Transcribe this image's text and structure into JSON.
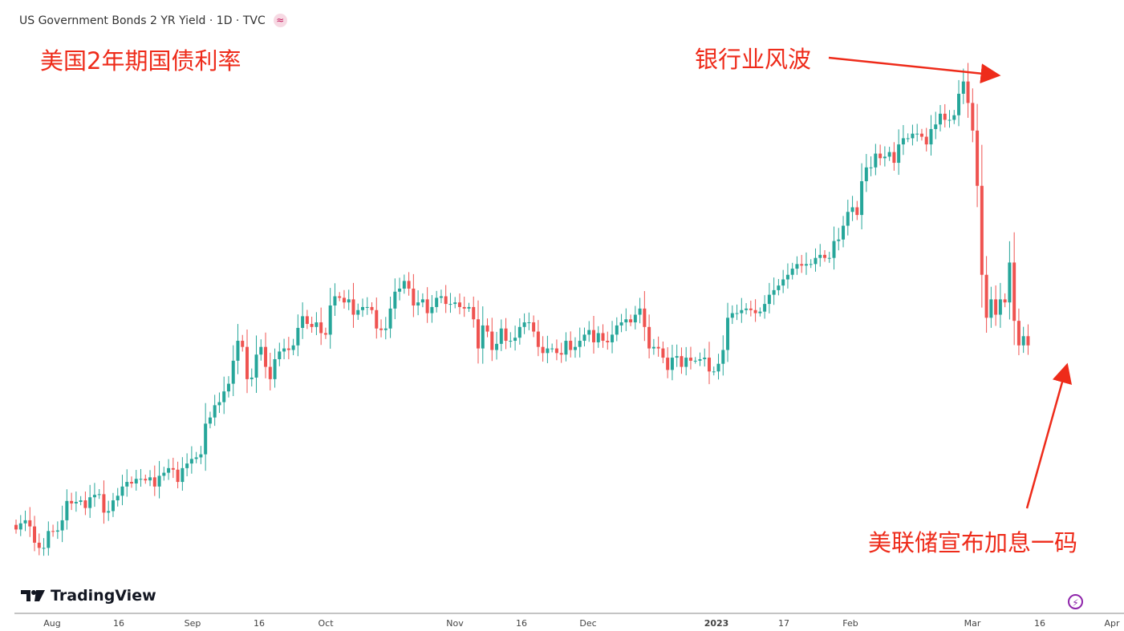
{
  "header": {
    "symbol_line": "US Government Bonds 2 YR Yield · 1D · TVC"
  },
  "annotations": {
    "title": "美国2年期国债利率",
    "bank_turmoil": "银行业风波",
    "fed_hike": "美联储宣布加息一码"
  },
  "brand": {
    "logo_text": "TradingView"
  },
  "colors": {
    "up": "#26a69a",
    "down": "#ef5350",
    "annotation": "#ee2b1a"
  },
  "chart_data": {
    "type": "candlestick",
    "title": "",
    "x_ticks": [
      "Aug",
      "16",
      "Sep",
      "16",
      "Oct",
      "Nov",
      "16",
      "Dec",
      "2023",
      "17",
      "Feb",
      "Mar",
      "16",
      "Apr"
    ],
    "ylim": [
      0,
      1
    ],
    "close": [
      0.105,
      0.125,
      0.135,
      0.115,
      0.062,
      0.045,
      0.045,
      0.1,
      0.098,
      0.102,
      0.135,
      0.198,
      0.19,
      0.195,
      0.2,
      0.175,
      0.21,
      0.218,
      0.22,
      0.16,
      0.165,
      0.2,
      0.215,
      0.245,
      0.26,
      0.255,
      0.27,
      0.27,
      0.265,
      0.275,
      0.245,
      0.28,
      0.29,
      0.305,
      0.3,
      0.26,
      0.305,
      0.32,
      0.335,
      0.34,
      0.35,
      0.45,
      0.47,
      0.51,
      0.52,
      0.555,
      0.58,
      0.655,
      0.72,
      0.7,
      0.595,
      0.6,
      0.675,
      0.7,
      0.635,
      0.595,
      0.66,
      0.685,
      0.695,
      0.69,
      0.705,
      0.762,
      0.8,
      0.775,
      0.765,
      0.78,
      0.745,
      0.74,
      0.835,
      0.865,
      0.86,
      0.845,
      0.855,
      0.805,
      0.82,
      0.83,
      0.83,
      0.82,
      0.76,
      0.755,
      0.76,
      0.825,
      0.88,
      0.89,
      0.915,
      0.89,
      0.835,
      0.845,
      0.855,
      0.81,
      0.83,
      0.86,
      0.865,
      0.84,
      0.84,
      0.845,
      0.83,
      0.825,
      0.83,
      0.79,
      0.695,
      0.77,
      0.75,
      0.69,
      0.71,
      0.76,
      0.72,
      0.72,
      0.73,
      0.765,
      0.78,
      0.78,
      0.75,
      0.7,
      0.68,
      0.695,
      0.695,
      0.68,
      0.675,
      0.72,
      0.69,
      0.7,
      0.72,
      0.74,
      0.755,
      0.715,
      0.745,
      0.72,
      0.715,
      0.74,
      0.77,
      0.78,
      0.79,
      0.78,
      0.805,
      0.825,
      0.765,
      0.695,
      0.7,
      0.695,
      0.665,
      0.625,
      0.665,
      0.67,
      0.635,
      0.665,
      0.655,
      0.655,
      0.66,
      0.665,
      0.62,
      0.62,
      0.645,
      0.69,
      0.795,
      0.81,
      0.81,
      0.82,
      0.825,
      0.82,
      0.81,
      0.815,
      0.84,
      0.87,
      0.885,
      0.9,
      0.92,
      0.935,
      0.955,
      0.97,
      0.965,
      0.97,
      0.97,
      0.99,
      1.0,
      0.99,
      0.99,
      1.045,
      1.05,
      1.095,
      1.14,
      1.155,
      1.13,
      1.24,
      1.285,
      1.285,
      1.33,
      1.315,
      1.32,
      1.335,
      1.3,
      1.36,
      1.38,
      1.38,
      1.395,
      1.395,
      1.385,
      1.36,
      1.41,
      1.425,
      1.46,
      1.44,
      1.44,
      1.455,
      1.525,
      1.565,
      1.495,
      1.405,
      1.225,
      0.935,
      0.795,
      0.855,
      0.805,
      0.855,
      0.845,
      0.975,
      0.785,
      0.705,
      0.735,
      0.705
    ]
  }
}
